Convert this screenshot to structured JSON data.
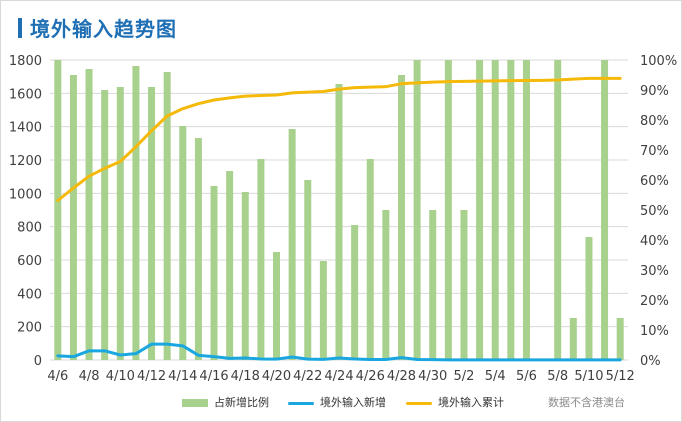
{
  "title": "境外输入趋势图",
  "note": "数据不含港澳台",
  "colors": {
    "bars": "#a9d18e",
    "new": "#1aa7e0",
    "cumulative": "#f5b90a",
    "grid": "#d9d9d9",
    "title": "#1f6fb5"
  },
  "chart_data": {
    "type": "bar",
    "categories": [
      "4/6",
      "4/7",
      "4/8",
      "4/9",
      "4/10",
      "4/11",
      "4/12",
      "4/13",
      "4/14",
      "4/15",
      "4/16",
      "4/17",
      "4/18",
      "4/19",
      "4/20",
      "4/21",
      "4/22",
      "4/23",
      "4/24",
      "4/25",
      "4/26",
      "4/27",
      "4/28",
      "4/29",
      "4/30",
      "5/1",
      "5/2",
      "5/3",
      "5/4",
      "5/5",
      "5/6",
      "5/7",
      "5/8",
      "5/9",
      "5/10",
      "5/11",
      "5/12"
    ],
    "x_tick_labels": [
      "4/6",
      "4/8",
      "4/10",
      "4/12",
      "4/14",
      "4/16",
      "4/18",
      "4/20",
      "4/22",
      "4/24",
      "4/26",
      "4/28",
      "4/30",
      "5/2",
      "5/4",
      "5/6",
      "5/8",
      "5/10",
      "5/12"
    ],
    "y_left": {
      "min": 0,
      "max": 1800,
      "step": 200,
      "ticks": [
        "0",
        "200",
        "400",
        "600",
        "800",
        "1000",
        "1200",
        "1400",
        "1600",
        "1800"
      ]
    },
    "y_right": {
      "min": 0,
      "max": 100,
      "ticks": [
        "0%",
        "10%",
        "20%",
        "30%",
        "40%",
        "50%",
        "60%",
        "70%",
        "80%",
        "90%",
        "100%"
      ]
    },
    "series": [
      {
        "name": "占新增比例",
        "type": "bar",
        "axis": "right",
        "values": [
          100,
          95,
          97,
          90,
          91,
          98,
          91,
          96,
          78,
          74,
          58,
          63,
          56,
          67,
          36,
          77,
          60,
          33,
          92,
          45,
          67,
          50,
          95,
          100,
          50,
          100,
          50,
          100,
          100,
          100,
          100,
          null,
          100,
          14,
          41,
          100,
          14
        ]
      },
      {
        "name": "境外输入新增",
        "type": "line",
        "axis": "left",
        "values": [
          25,
          20,
          55,
          55,
          30,
          38,
          95,
          95,
          85,
          28,
          20,
          10,
          12,
          6,
          5,
          18,
          5,
          4,
          12,
          6,
          3,
          3,
          14,
          3,
          2,
          1,
          1,
          1,
          1,
          1,
          1,
          1,
          1,
          1,
          1,
          1,
          1
        ]
      },
      {
        "name": "境外输入累计",
        "type": "line",
        "axis": "left",
        "values": [
          957,
          1032,
          1103,
          1150,
          1191,
          1280,
          1375,
          1464,
          1508,
          1538,
          1560,
          1573,
          1583,
          1587,
          1590,
          1603,
          1607,
          1611,
          1625,
          1634,
          1637,
          1640,
          1658,
          1663,
          1667,
          1670,
          1672,
          1673,
          1675,
          1676,
          1677,
          1678,
          1680,
          1685,
          1690,
          1690,
          1690
        ]
      }
    ],
    "grid": true,
    "legend_position": "bottom"
  }
}
